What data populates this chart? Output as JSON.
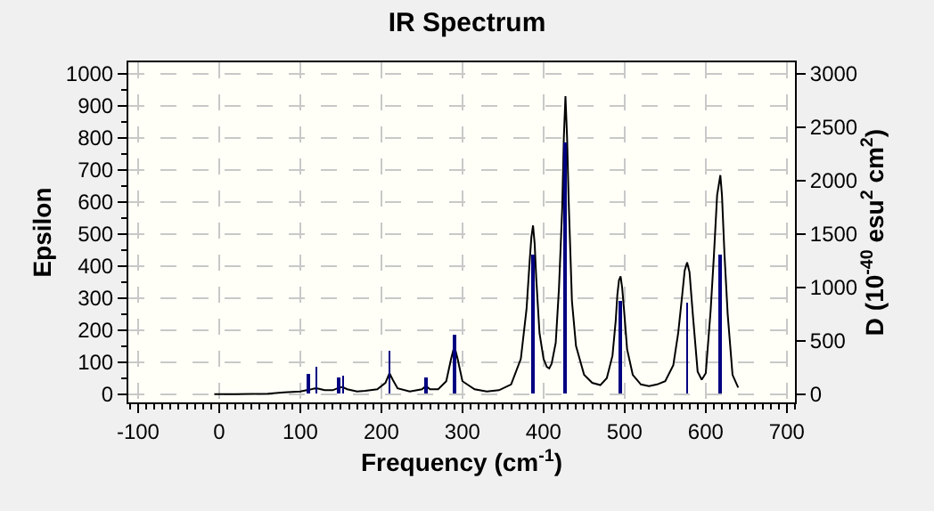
{
  "chart_data": {
    "type": "line",
    "title": "IR Spectrum",
    "xlabel": "Frequency (cm$^{-1}$)",
    "ylabel": "Epsilon",
    "y2label": "D (10$^{-40}$ esu$^{2}$ cm$^{2}$)",
    "xlim": [
      -112,
      710
    ],
    "xticks": [
      -100,
      0,
      100,
      200,
      300,
      400,
      500,
      600,
      700
    ],
    "ylim": [
      -26,
      1035
    ],
    "yticks": [
      0,
      100,
      200,
      300,
      400,
      500,
      600,
      700,
      800,
      900,
      1000
    ],
    "y2lim": [
      -78,
      3105
    ],
    "y2ticks": [
      0,
      500,
      1000,
      1500,
      2000,
      2500,
      3000
    ],
    "grid": true,
    "series": [
      {
        "color": "#000000",
        "x": [
          -6,
          20,
          60,
          80,
          100,
          108,
          112,
          118,
          122,
          130,
          140,
          148,
          152,
          158,
          170,
          180,
          195,
          205,
          210,
          214,
          220,
          235,
          250,
          255,
          260,
          270,
          280,
          286,
          290,
          294,
          300,
          315,
          330,
          345,
          360,
          372,
          379,
          383,
          385,
          387,
          389,
          391,
          395,
          400,
          404,
          407,
          410,
          415,
          419,
          423,
          425,
          427,
          429,
          431,
          435,
          440,
          450,
          460,
          470,
          478,
          485,
          489,
          491,
          493,
          495,
          497,
          499,
          503,
          510,
          520,
          530,
          540,
          550,
          560,
          566,
          571,
          574,
          577,
          580,
          584,
          590,
          595,
          600,
          606,
          610,
          614,
          618,
          620,
          623,
          627,
          633,
          640
        ],
        "values": [
          0,
          0,
          1,
          5,
          8,
          12,
          14,
          18,
          17,
          12,
          12,
          20,
          22,
          15,
          8,
          10,
          15,
          35,
          65,
          45,
          18,
          8,
          15,
          25,
          15,
          15,
          40,
          110,
          150,
          110,
          40,
          15,
          8,
          12,
          30,
          110,
          265,
          420,
          490,
          526,
          470,
          360,
          190,
          110,
          85,
          80,
          95,
          160,
          330,
          580,
          800,
          929,
          800,
          600,
          290,
          150,
          60,
          35,
          28,
          50,
          120,
          230,
          310,
          355,
          367,
          330,
          270,
          140,
          60,
          30,
          25,
          30,
          40,
          90,
          190,
          310,
          385,
          411,
          380,
          250,
          70,
          45,
          65,
          260,
          430,
          620,
          683,
          620,
          440,
          250,
          60,
          20
        ]
      },
      {
        "type": "bar",
        "axis": "y2",
        "color": "#000080",
        "x": [
          110,
          120,
          148,
          153,
          210,
          255,
          290,
          387,
          427,
          495,
          577,
          617
        ],
        "values": [
          190,
          250,
          150,
          170,
          400,
          150,
          550,
          1300,
          2350,
          870,
          860,
          1300
        ]
      }
    ]
  }
}
